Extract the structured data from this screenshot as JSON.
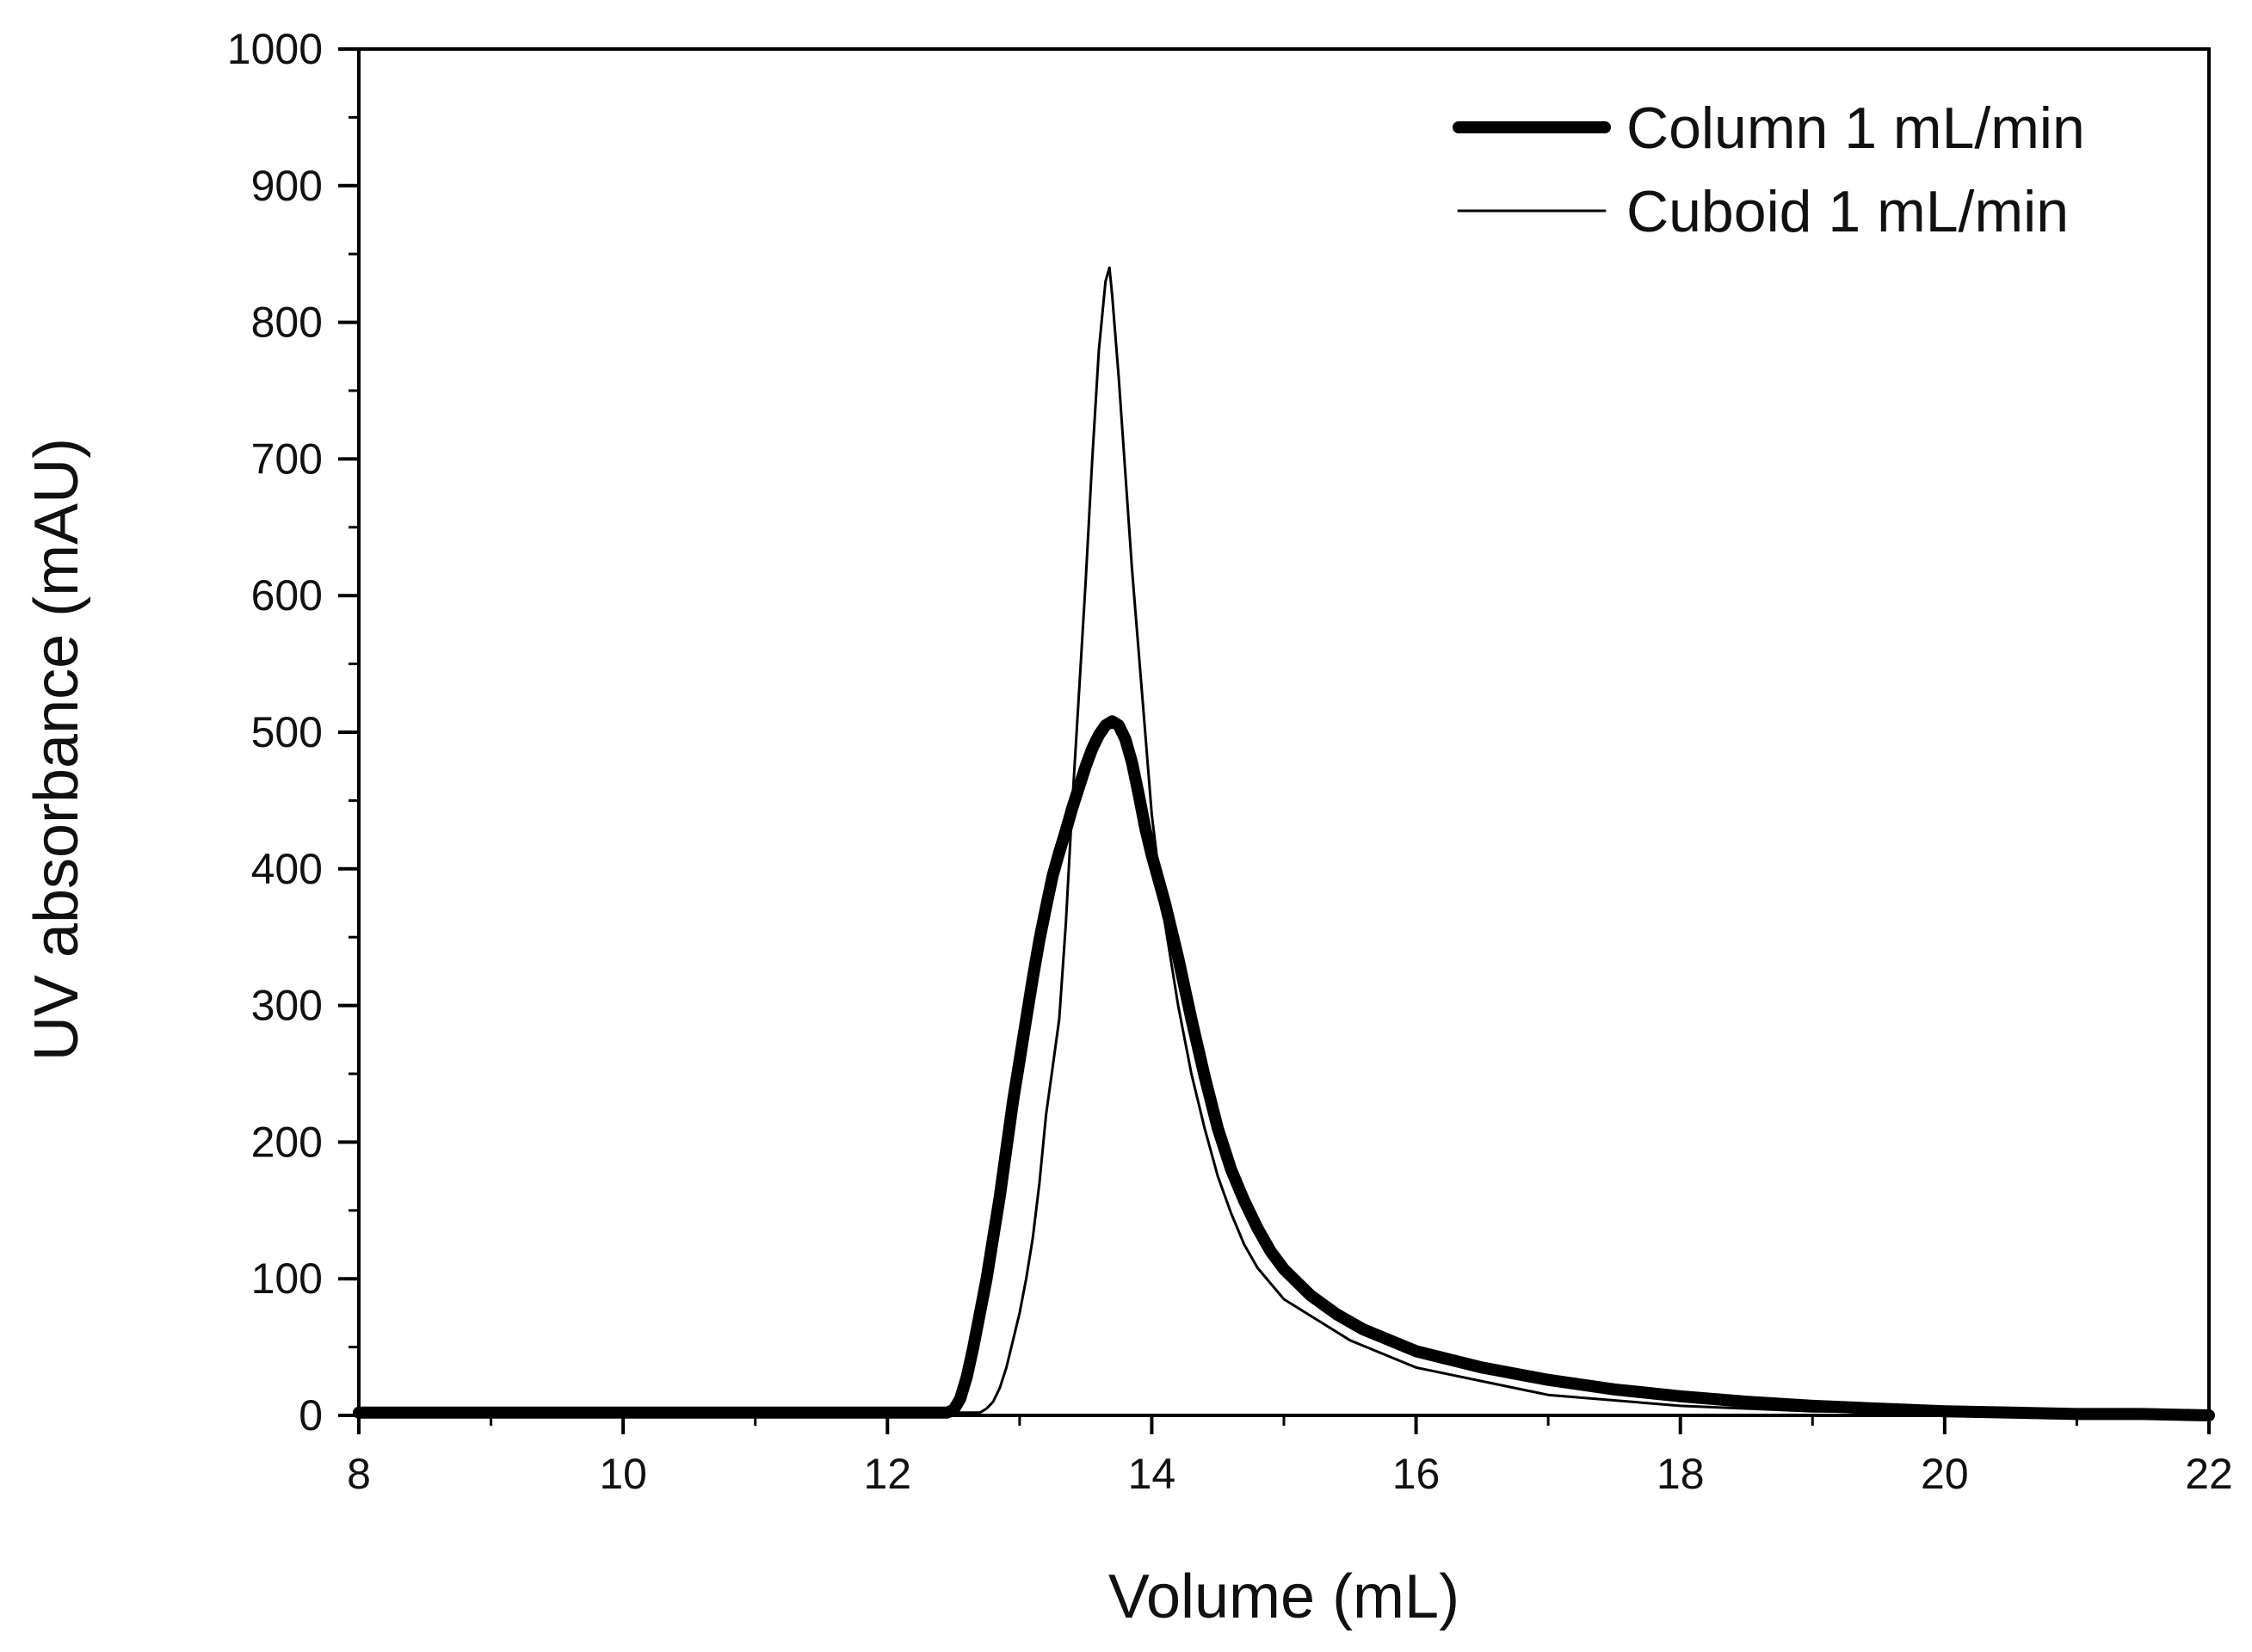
{
  "chart_data": {
    "type": "line",
    "title": "",
    "xlabel": "Volume (mL)",
    "ylabel": "UV absorbance (mAU)",
    "xlim": [
      8,
      22
    ],
    "ylim": [
      0,
      1000
    ],
    "x_ticks": [
      8,
      10,
      12,
      14,
      16,
      18,
      20,
      22
    ],
    "y_ticks": [
      0,
      100,
      200,
      300,
      400,
      500,
      600,
      700,
      800,
      900,
      1000
    ],
    "x_tick_labels": [
      "8",
      "10",
      "12",
      "14",
      "16",
      "18",
      "20",
      "22"
    ],
    "y_tick_labels": [
      "0",
      "100",
      "200",
      "300",
      "400",
      "500",
      "600",
      "700",
      "800",
      "900",
      "1000"
    ],
    "grid": false,
    "legend_position": "top-right",
    "series": [
      {
        "name": "Column 1 mL/min",
        "line": "thick",
        "color": "#000000",
        "x": [
          8,
          12.45,
          12.5,
          12.55,
          12.6,
          12.65,
          12.7,
          12.75,
          12.8,
          12.85,
          12.9,
          12.95,
          13.0,
          13.05,
          13.1,
          13.15,
          13.2,
          13.25,
          13.3,
          13.35,
          13.4,
          13.45,
          13.5,
          13.55,
          13.6,
          13.65,
          13.7,
          13.75,
          13.8,
          13.85,
          13.9,
          13.95,
          14.0,
          14.1,
          14.2,
          14.3,
          14.4,
          14.5,
          14.6,
          14.7,
          14.8,
          14.9,
          15.0,
          15.2,
          15.4,
          15.6,
          15.8,
          16.0,
          16.5,
          17.0,
          17.5,
          18.0,
          18.5,
          19.0,
          19.5,
          20.0,
          20.5,
          21.0,
          21.5,
          22.0
        ],
        "values": [
          2,
          2,
          4,
          12,
          28,
          50,
          75,
          100,
          130,
          160,
          195,
          230,
          260,
          290,
          320,
          348,
          372,
          395,
          412,
          428,
          445,
          460,
          475,
          488,
          498,
          505,
          508,
          505,
          495,
          478,
          455,
          430,
          410,
          375,
          335,
          290,
          248,
          210,
          180,
          157,
          137,
          120,
          107,
          88,
          74,
          63,
          55,
          47,
          35,
          26,
          19,
          14,
          10,
          7,
          5,
          3,
          2,
          1,
          1,
          0
        ]
      },
      {
        "name": "Cuboid 1 mL/min",
        "line": "thin",
        "color": "#000000",
        "x": [
          8,
          12.7,
          12.75,
          12.8,
          12.85,
          12.9,
          12.95,
          13.0,
          13.05,
          13.1,
          13.15,
          13.2,
          13.25,
          13.3,
          13.35,
          13.4,
          13.45,
          13.5,
          13.55,
          13.6,
          13.65,
          13.68,
          13.7,
          13.75,
          13.8,
          13.85,
          13.9,
          13.95,
          14.0,
          14.05,
          14.1,
          14.2,
          14.3,
          14.4,
          14.5,
          14.6,
          14.7,
          14.8,
          15.0,
          15.5,
          16.0,
          17.0,
          18.0,
          19.0,
          20.0,
          21.0,
          22.0
        ],
        "values": [
          2,
          2,
          5,
          10,
          20,
          35,
          55,
          75,
          100,
          130,
          170,
          220,
          255,
          290,
          360,
          450,
          530,
          610,
          700,
          780,
          830,
          840,
          820,
          760,
          690,
          620,
          560,
          500,
          440,
          400,
          360,
          300,
          250,
          210,
          175,
          148,
          125,
          108,
          85,
          55,
          35,
          15,
          7,
          3,
          2,
          1,
          0
        ]
      }
    ]
  }
}
